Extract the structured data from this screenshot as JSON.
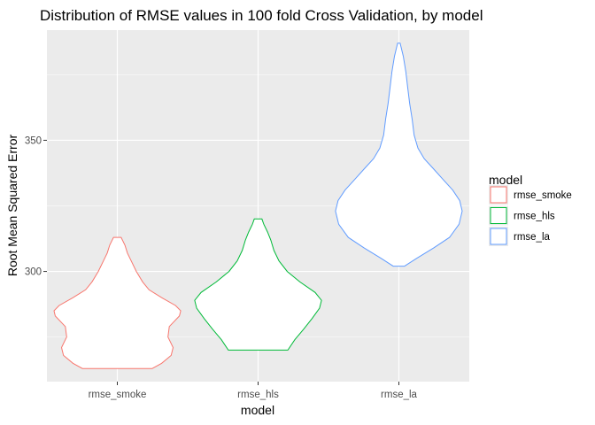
{
  "chart_data": {
    "type": "violin",
    "title": "Distribution of RMSE values in 100 fold Cross Validation, by model",
    "xlabel": "model",
    "ylabel": "Root Mean Squared Error",
    "categories": [
      "rmse_smoke",
      "rmse_hls",
      "rmse_la"
    ],
    "ylim": [
      258,
      392
    ],
    "yticks": [
      300,
      350
    ],
    "grid": true,
    "legend": {
      "title": "model",
      "position": "right",
      "entries": [
        "rmse_smoke",
        "rmse_hls",
        "rmse_la"
      ]
    },
    "colors": {
      "rmse_smoke": "#F8766D",
      "rmse_hls": "#00BA38",
      "rmse_la": "#619CFF",
      "panel": "#EBEBEB",
      "grid": "#FFFFFF"
    },
    "series": [
      {
        "name": "rmse_smoke",
        "min": 263,
        "max": 313,
        "density": [
          [
            263,
            0.55
          ],
          [
            265,
            0.7
          ],
          [
            268,
            0.85
          ],
          [
            271,
            0.88
          ],
          [
            275,
            0.8
          ],
          [
            279,
            0.82
          ],
          [
            283,
            0.98
          ],
          [
            285,
            1.0
          ],
          [
            287,
            0.92
          ],
          [
            290,
            0.7
          ],
          [
            293,
            0.5
          ],
          [
            296,
            0.4
          ],
          [
            300,
            0.3
          ],
          [
            304,
            0.22
          ],
          [
            307,
            0.16
          ],
          [
            310,
            0.12
          ],
          [
            313,
            0.06
          ]
        ]
      },
      {
        "name": "rmse_hls",
        "min": 270,
        "max": 320,
        "density": [
          [
            270,
            0.47
          ],
          [
            274,
            0.58
          ],
          [
            278,
            0.72
          ],
          [
            282,
            0.85
          ],
          [
            286,
            0.97
          ],
          [
            289,
            1.0
          ],
          [
            292,
            0.9
          ],
          [
            296,
            0.66
          ],
          [
            300,
            0.46
          ],
          [
            304,
            0.33
          ],
          [
            308,
            0.25
          ],
          [
            312,
            0.2
          ],
          [
            315,
            0.15
          ],
          [
            318,
            0.09
          ],
          [
            320,
            0.06
          ]
        ]
      },
      {
        "name": "rmse_la",
        "min": 302,
        "max": 387,
        "density": [
          [
            302,
            0.09
          ],
          [
            305,
            0.28
          ],
          [
            309,
            0.55
          ],
          [
            313,
            0.8
          ],
          [
            318,
            0.95
          ],
          [
            323,
            1.0
          ],
          [
            327,
            0.96
          ],
          [
            331,
            0.85
          ],
          [
            335,
            0.7
          ],
          [
            339,
            0.55
          ],
          [
            343,
            0.4
          ],
          [
            347,
            0.3
          ],
          [
            352,
            0.24
          ],
          [
            358,
            0.21
          ],
          [
            364,
            0.17
          ],
          [
            370,
            0.14
          ],
          [
            376,
            0.11
          ],
          [
            382,
            0.07
          ],
          [
            387,
            0.02
          ]
        ]
      }
    ]
  }
}
